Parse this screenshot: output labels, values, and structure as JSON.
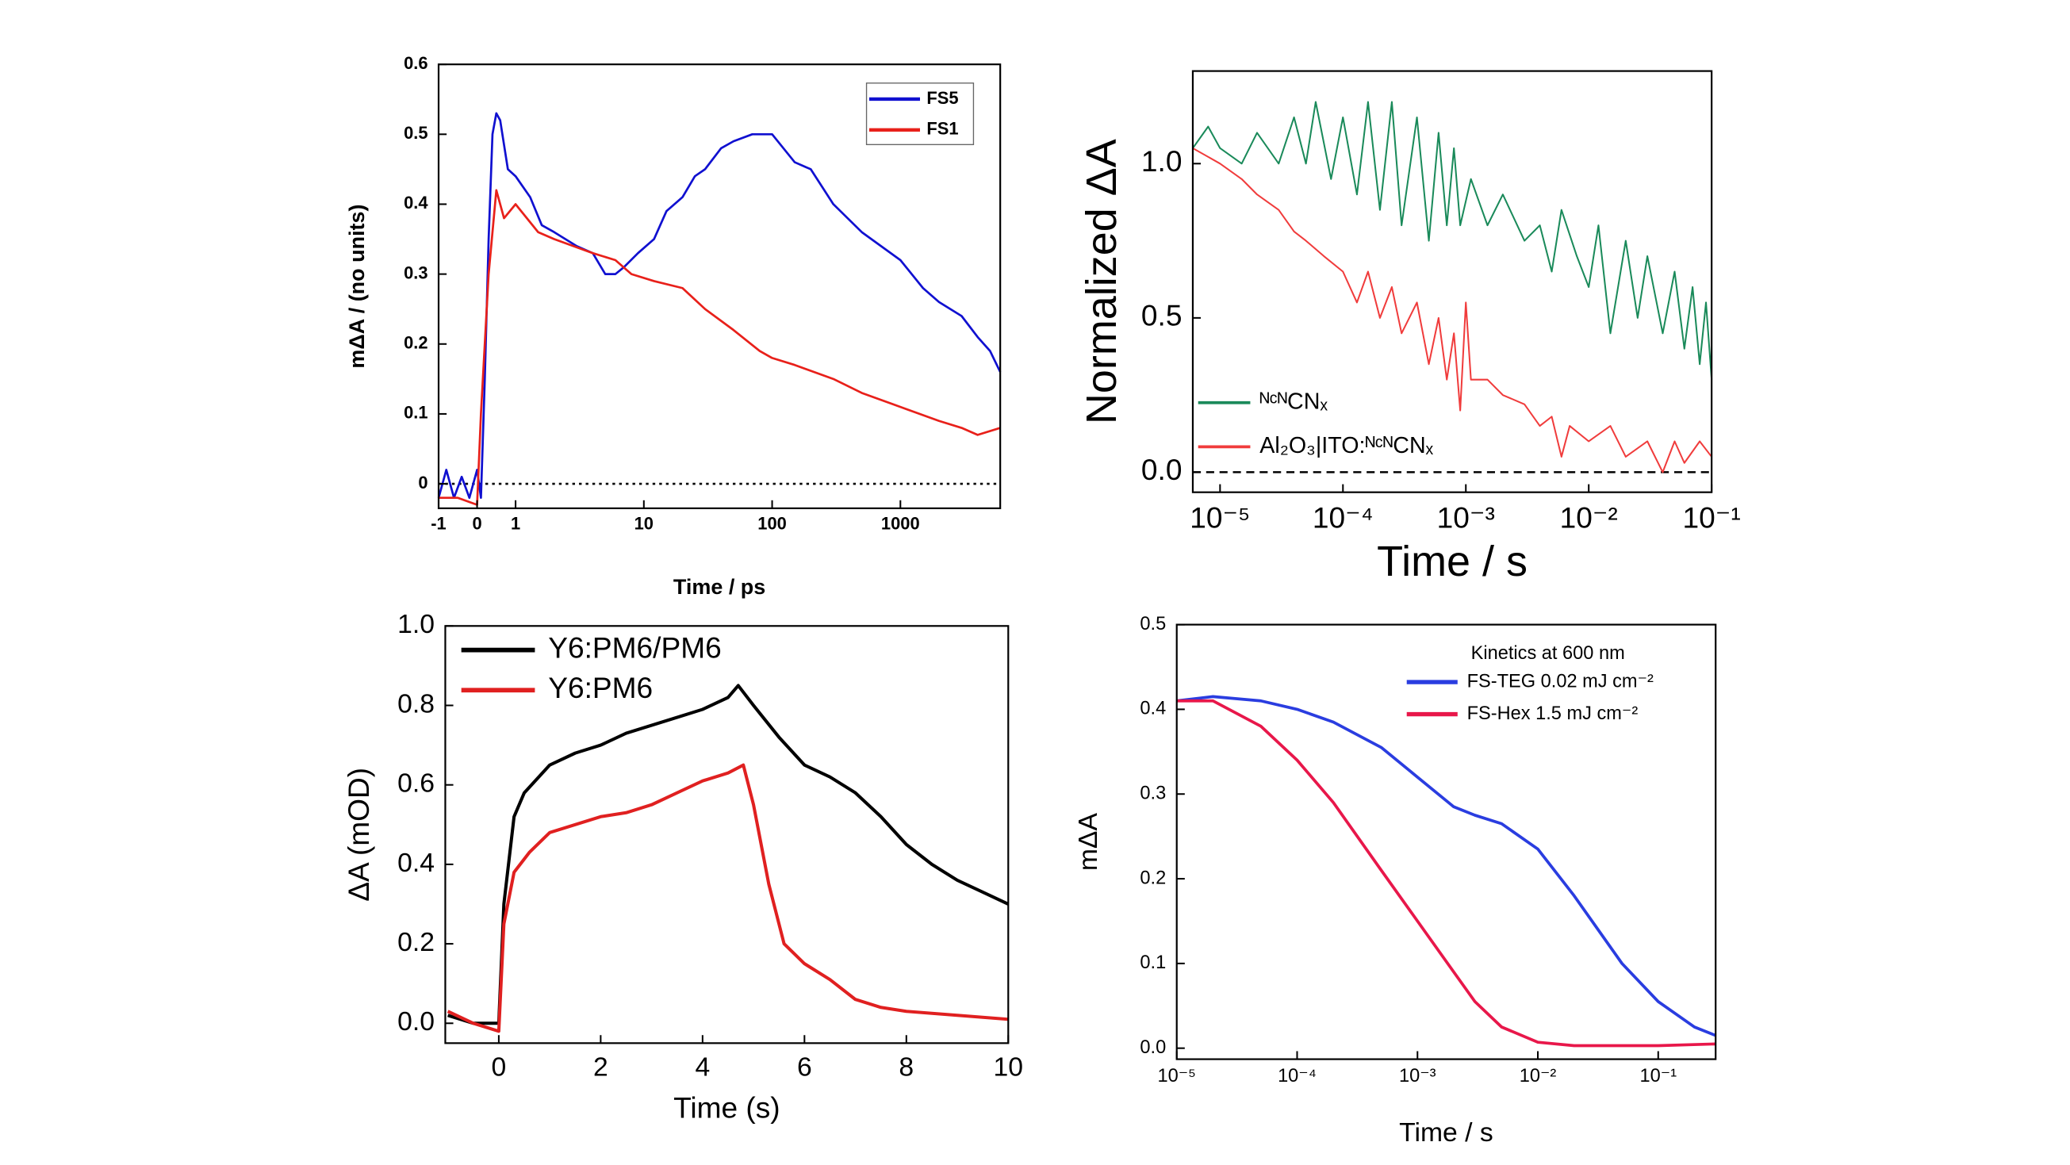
{
  "chart_data": [
    {
      "type": "line",
      "xscale": "linlog",
      "x_label": "Time / ps",
      "y_label": "mΔA / (no units)",
      "xlim": [
        -1,
        6000
      ],
      "xticks": [
        -1,
        0,
        1,
        10,
        100,
        1000
      ],
      "ylim": [
        -0.035,
        0.6
      ],
      "yticks": [
        0,
        0.1,
        0.2,
        0.3,
        0.4,
        0.5,
        0.6
      ],
      "reference_line": {
        "value": 0,
        "style": "dotted"
      },
      "legend": "upper right",
      "series": [
        {
          "name": "FS5",
          "color": "#1010d0",
          "x": [
            -1,
            -0.8,
            -0.6,
            -0.4,
            -0.2,
            0,
            0.1,
            0.2,
            0.3,
            0.4,
            0.5,
            0.6,
            0.8,
            1,
            1.3,
            1.6,
            2,
            3,
            4,
            5,
            6,
            7,
            9,
            12,
            15,
            20,
            25,
            30,
            40,
            50,
            70,
            100,
            150,
            200,
            300,
            500,
            1000,
            1500,
            2000,
            3000,
            4000,
            5000,
            6000
          ],
          "values": [
            -0.02,
            0.02,
            -0.02,
            0.01,
            -0.02,
            0.02,
            -0.02,
            0.15,
            0.35,
            0.5,
            0.53,
            0.52,
            0.45,
            0.44,
            0.41,
            0.37,
            0.36,
            0.34,
            0.33,
            0.3,
            0.3,
            0.31,
            0.33,
            0.35,
            0.39,
            0.41,
            0.44,
            0.45,
            0.48,
            0.49,
            0.5,
            0.5,
            0.46,
            0.45,
            0.4,
            0.36,
            0.32,
            0.28,
            0.26,
            0.24,
            0.21,
            0.19,
            0.16
          ]
        },
        {
          "name": "FS1",
          "color": "#e8201a",
          "x": [
            -1,
            -0.5,
            0,
            0.1,
            0.3,
            0.5,
            0.7,
            1,
            1.5,
            2,
            4,
            6,
            8,
            12,
            20,
            30,
            50,
            80,
            100,
            150,
            300,
            500,
            1000,
            2000,
            3000,
            4000,
            6000
          ],
          "values": [
            -0.02,
            -0.02,
            -0.03,
            0.1,
            0.3,
            0.42,
            0.38,
            0.4,
            0.36,
            0.35,
            0.33,
            0.32,
            0.3,
            0.29,
            0.28,
            0.25,
            0.22,
            0.19,
            0.18,
            0.17,
            0.15,
            0.13,
            0.11,
            0.09,
            0.08,
            0.07,
            0.08
          ]
        }
      ]
    },
    {
      "type": "line",
      "xscale": "log",
      "x_label": "Time / s",
      "y_label": "Normalized ΔA",
      "xlim": [
        6e-06,
        0.1
      ],
      "xticks": [
        {
          "value": 1e-05,
          "label": "10⁻⁵"
        },
        {
          "value": 0.0001,
          "label": "10⁻⁴"
        },
        {
          "value": 0.001,
          "label": "10⁻³"
        },
        {
          "value": 0.01,
          "label": "10⁻²"
        },
        {
          "value": 0.1,
          "label": "10⁻¹"
        }
      ],
      "ylim": [
        -0.065,
        1.3
      ],
      "yticks": [
        {
          "value": 0,
          "label": "0.0"
        },
        0.5,
        {
          "value": 1,
          "label": "1.0"
        }
      ],
      "reference_line": {
        "value": 0,
        "style": "dashed"
      },
      "legend": "lower left",
      "series": [
        {
          "name": "ᴺᶜᴺCNₓ",
          "color": "#1a8a5a",
          "x": [
            6e-06,
            8e-06,
            1e-05,
            1.5e-05,
            2e-05,
            3e-05,
            4e-05,
            5e-05,
            6e-05,
            8e-05,
            0.0001,
            0.00013,
            0.00016,
            0.0002,
            0.00025,
            0.0003,
            0.0004,
            0.0005,
            0.0006,
            0.0007,
            0.0008,
            0.0009,
            0.0011,
            0.0015,
            0.002,
            0.003,
            0.004,
            0.005,
            0.006,
            0.008,
            0.01,
            0.012,
            0.015,
            0.02,
            0.025,
            0.03,
            0.04,
            0.05,
            0.06,
            0.07,
            0.08,
            0.09,
            0.1
          ],
          "values": [
            1.05,
            1.12,
            1.05,
            1.0,
            1.1,
            1.0,
            1.15,
            1.0,
            1.2,
            0.95,
            1.15,
            0.9,
            1.2,
            0.85,
            1.2,
            0.8,
            1.15,
            0.75,
            1.1,
            0.8,
            1.05,
            0.8,
            0.95,
            0.8,
            0.9,
            0.75,
            0.8,
            0.65,
            0.85,
            0.7,
            0.6,
            0.8,
            0.45,
            0.75,
            0.5,
            0.7,
            0.45,
            0.65,
            0.4,
            0.6,
            0.35,
            0.55,
            0.3
          ]
        },
        {
          "name": "Al₂O₃|ITO:ᴺᶜᴺCNₓ",
          "color": "#f03c3c",
          "x": [
            6e-06,
            1e-05,
            1.5e-05,
            2e-05,
            3e-05,
            4e-05,
            5e-05,
            7e-05,
            0.0001,
            0.00013,
            0.00016,
            0.0002,
            0.00025,
            0.0003,
            0.0004,
            0.0005,
            0.0006,
            0.0007,
            0.0008,
            0.0009,
            0.001,
            0.0011,
            0.0015,
            0.002,
            0.003,
            0.004,
            0.005,
            0.006,
            0.007,
            0.01,
            0.015,
            0.02,
            0.03,
            0.04,
            0.05,
            0.06,
            0.08,
            0.1
          ],
          "values": [
            1.05,
            1.0,
            0.95,
            0.9,
            0.85,
            0.78,
            0.75,
            0.7,
            0.65,
            0.55,
            0.65,
            0.5,
            0.6,
            0.45,
            0.55,
            0.35,
            0.5,
            0.3,
            0.45,
            0.2,
            0.55,
            0.3,
            0.3,
            0.25,
            0.22,
            0.15,
            0.18,
            0.05,
            0.15,
            0.1,
            0.15,
            0.05,
            0.1,
            0,
            0.1,
            0.03,
            0.1,
            0.05
          ]
        }
      ]
    },
    {
      "type": "line",
      "xscale": "linear",
      "x_label": "Time (s)",
      "y_label": "ΔA (mOD)",
      "xlim": [
        -1.05,
        10
      ],
      "xticks": [
        0,
        2,
        4,
        6,
        8,
        10
      ],
      "ylim": [
        -0.05,
        1.0
      ],
      "yticks": [
        {
          "value": 0,
          "label": "0.0"
        },
        0.2,
        0.4,
        0.6,
        0.8,
        {
          "value": 1,
          "label": "1.0"
        }
      ],
      "legend": "upper left",
      "series": [
        {
          "name": "Y6:PM6/PM6",
          "color": "#000000",
          "x": [
            -1,
            -0.5,
            0,
            0.1,
            0.3,
            0.5,
            1,
            1.5,
            2,
            2.5,
            3,
            3.5,
            4,
            4.5,
            4.7,
            5,
            5.5,
            6,
            6.5,
            7,
            7.5,
            8,
            8.5,
            9,
            9.5,
            10
          ],
          "values": [
            0.02,
            0,
            0,
            0.3,
            0.52,
            0.58,
            0.65,
            0.68,
            0.7,
            0.73,
            0.75,
            0.77,
            0.79,
            0.82,
            0.85,
            0.8,
            0.72,
            0.65,
            0.62,
            0.58,
            0.52,
            0.45,
            0.4,
            0.36,
            0.33,
            0.3
          ]
        },
        {
          "name": "Y6:PM6",
          "color": "#e02020",
          "x": [
            -1,
            -0.5,
            0,
            0.1,
            0.3,
            0.6,
            1,
            1.5,
            2,
            2.5,
            3,
            3.5,
            4,
            4.5,
            4.8,
            5,
            5.3,
            5.6,
            6,
            6.5,
            7,
            7.5,
            8,
            9,
            10
          ],
          "values": [
            0.03,
            0,
            -0.02,
            0.25,
            0.38,
            0.43,
            0.48,
            0.5,
            0.52,
            0.53,
            0.55,
            0.58,
            0.61,
            0.63,
            0.65,
            0.55,
            0.35,
            0.2,
            0.15,
            0.11,
            0.06,
            0.04,
            0.03,
            0.02,
            0.01
          ]
        }
      ]
    },
    {
      "type": "line",
      "xscale": "log",
      "x_label": "Time / s",
      "y_label": "mΔA",
      "annotation": "Kinetics at 600 nm",
      "xlim": [
        1e-05,
        0.3
      ],
      "xticks": [
        {
          "value": 1e-05,
          "label": "10⁻⁵"
        },
        {
          "value": 0.0001,
          "label": "10⁻⁴"
        },
        {
          "value": 0.001,
          "label": "10⁻³"
        },
        {
          "value": 0.01,
          "label": "10⁻²"
        },
        {
          "value": 0.1,
          "label": "10⁻¹"
        }
      ],
      "ylim": [
        -0.013,
        0.5
      ],
      "yticks": [
        {
          "value": 0,
          "label": "0.0"
        },
        0.1,
        0.2,
        0.3,
        0.4,
        0.5
      ],
      "legend": "upper right",
      "series": [
        {
          "name": "FS-TEG 0.02 mJ cm⁻²",
          "color": "#2a3de0",
          "x": [
            1e-05,
            2e-05,
            5e-05,
            0.0001,
            0.0002,
            0.0005,
            0.001,
            0.002,
            0.003,
            0.005,
            0.01,
            0.02,
            0.05,
            0.1,
            0.2,
            0.3
          ],
          "values": [
            0.41,
            0.415,
            0.41,
            0.4,
            0.385,
            0.355,
            0.32,
            0.285,
            0.275,
            0.265,
            0.235,
            0.18,
            0.1,
            0.055,
            0.025,
            0.015
          ]
        },
        {
          "name": "FS-Hex 1.5 mJ cm⁻²",
          "color": "#e8174a",
          "x": [
            1e-05,
            2e-05,
            5e-05,
            0.0001,
            0.0002,
            0.0005,
            0.001,
            0.002,
            0.003,
            0.005,
            0.01,
            0.02,
            0.1,
            0.3
          ],
          "values": [
            0.41,
            0.41,
            0.38,
            0.34,
            0.29,
            0.21,
            0.15,
            0.09,
            0.055,
            0.025,
            0.007,
            0.003,
            0.003,
            0.005
          ]
        }
      ]
    }
  ]
}
